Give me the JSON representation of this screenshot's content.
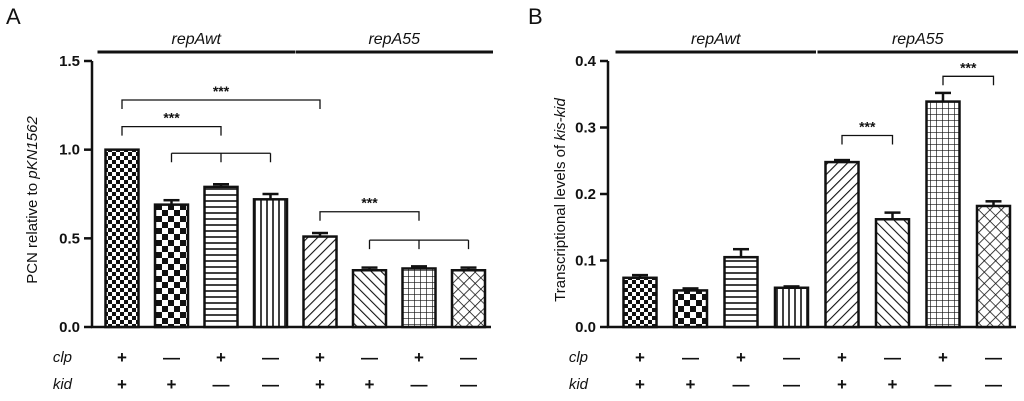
{
  "chart_data": [
    {
      "type": "bar",
      "panel": "A",
      "ylabel_plain": "PCN relative to ",
      "ylabel_italic": "pKN1562",
      "ylim": [
        0,
        1.5
      ],
      "yticks": [
        "0.0",
        "0.5",
        "1.0",
        "1.5"
      ],
      "ytick_values": [
        0,
        0.5,
        1.0,
        1.5
      ],
      "groups": [
        {
          "label": "repAwt",
          "bars": [
            0,
            1,
            2,
            3
          ]
        },
        {
          "label": "repA55",
          "bars": [
            4,
            5,
            6,
            7
          ]
        }
      ],
      "values": [
        1.0,
        0.69,
        0.79,
        0.72,
        0.51,
        0.32,
        0.33,
        0.32
      ],
      "errors": [
        0.0,
        0.025,
        0.015,
        0.03,
        0.02,
        0.015,
        0.012,
        0.015
      ],
      "patterns": [
        "check",
        "checklarge",
        "hlines",
        "vlines",
        "diag",
        "diagrev",
        "grid",
        "crosshatch"
      ],
      "significance": [
        {
          "type": "pair",
          "from": 0,
          "to": 2,
          "y": 1.13,
          "label": "***"
        },
        {
          "type": "pair",
          "from": 0,
          "to": 4,
          "y": 1.28,
          "label": "***"
        },
        {
          "type": "multi",
          "bars": [
            1,
            2,
            3
          ],
          "y": 0.98
        },
        {
          "type": "pair",
          "from": 4,
          "to": 6,
          "y": 0.65,
          "label": "***"
        },
        {
          "type": "multi",
          "bars": [
            5,
            6,
            7
          ],
          "y": 0.49
        }
      ]
    },
    {
      "type": "bar",
      "panel": "B",
      "ylabel_plain": "Transcriptional levels of ",
      "ylabel_italic": "kis-kid",
      "ylim": [
        0,
        0.4
      ],
      "yticks": [
        "0.0",
        "0.1",
        "0.2",
        "0.3",
        "0.4"
      ],
      "ytick_values": [
        0,
        0.1,
        0.2,
        0.3,
        0.4
      ],
      "groups": [
        {
          "label": "repAwt",
          "bars": [
            0,
            1,
            2,
            3
          ]
        },
        {
          "label": "repA55",
          "bars": [
            4,
            5,
            6,
            7
          ]
        }
      ],
      "values": [
        0.074,
        0.055,
        0.105,
        0.059,
        0.248,
        0.162,
        0.339,
        0.182
      ],
      "errors": [
        0.004,
        0.003,
        0.012,
        0.002,
        0.003,
        0.01,
        0.013,
        0.007
      ],
      "patterns": [
        "check",
        "checklarge",
        "hlines",
        "vlines",
        "diag",
        "diagrev",
        "grid",
        "crosshatch"
      ],
      "significance": [
        {
          "type": "pair",
          "from": 4,
          "to": 5,
          "y": 0.288,
          "label": "***"
        },
        {
          "type": "pair",
          "from": 6,
          "to": 7,
          "y": 0.377,
          "label": "***"
        }
      ]
    }
  ],
  "genotype_rows": [
    {
      "label": "clp",
      "signs": [
        "+",
        "—",
        "+",
        "—",
        "+",
        "—",
        "+",
        "—"
      ]
    },
    {
      "label": "kid",
      "signs": [
        "+",
        "+",
        "—",
        "—",
        "+",
        "+",
        "—",
        "—"
      ]
    }
  ]
}
